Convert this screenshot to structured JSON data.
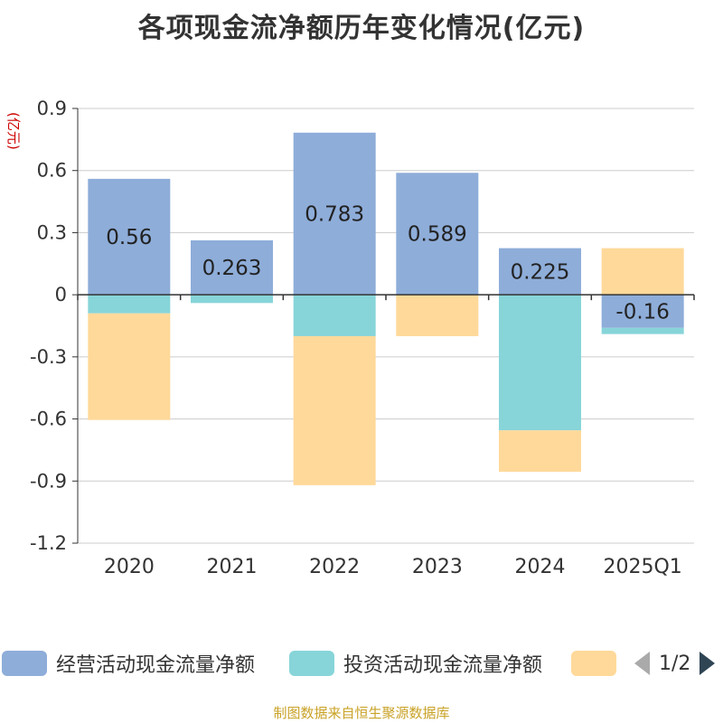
{
  "title": "各项现金流净额历年变化情况(亿元)",
  "unit_label": "(亿元)",
  "footer": "制图数据来自恒生聚源数据库",
  "pager": {
    "text": "1/2",
    "prev_icon": "triangle-left-icon",
    "next_icon": "triangle-right-icon"
  },
  "colors": {
    "operating": "#8eadd9",
    "investing": "#87d5d9",
    "financing": "#ffd99a",
    "pager_active": "#2f4554",
    "pager_inactive": "#aaaaaa"
  },
  "chart_data": {
    "type": "bar",
    "stacked": true,
    "title": "各项现金流净额历年变化情况(亿元)",
    "ylabel": "(亿元)",
    "categories": [
      "2020",
      "2021",
      "2022",
      "2023",
      "2024",
      "2025Q1"
    ],
    "ylim": [
      -1.2,
      0.9
    ],
    "yticks": [
      "0.9",
      "0.6",
      "0.3",
      "0",
      "-0.3",
      "-0.6",
      "-0.9",
      "-1.2"
    ],
    "grid": true,
    "legend_position": "bottom",
    "series": [
      {
        "name": "经营活动现金流量净额",
        "values": [
          0.56,
          0.263,
          0.783,
          0.589,
          0.225,
          -0.16
        ],
        "labels": [
          "0.56",
          "0.263",
          "0.783",
          "0.589",
          "0.225",
          "-0.16"
        ]
      },
      {
        "name": "投资活动现金流量净额",
        "values": [
          -0.09,
          -0.04,
          -0.2,
          0.0,
          -0.655,
          -0.03
        ]
      },
      {
        "name": "",
        "values": [
          -0.515,
          0.0,
          -0.72,
          -0.2,
          -0.2,
          0.225
        ]
      }
    ]
  }
}
